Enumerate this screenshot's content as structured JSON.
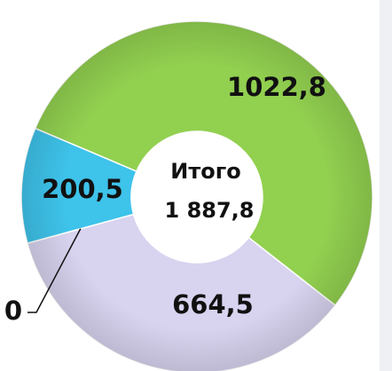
{
  "chart_data": {
    "type": "pie",
    "donut": true,
    "values": [
      1022.8,
      664.5,
      0,
      200.5
    ],
    "value_labels": [
      "1022,8",
      "664,5",
      "0",
      "200,5"
    ],
    "colors": [
      "#92d050",
      "#d8d3ef",
      "#8fb0d8",
      "#3ec3ea"
    ],
    "annotations": [
      "Итого",
      "1 887,8"
    ]
  }
}
